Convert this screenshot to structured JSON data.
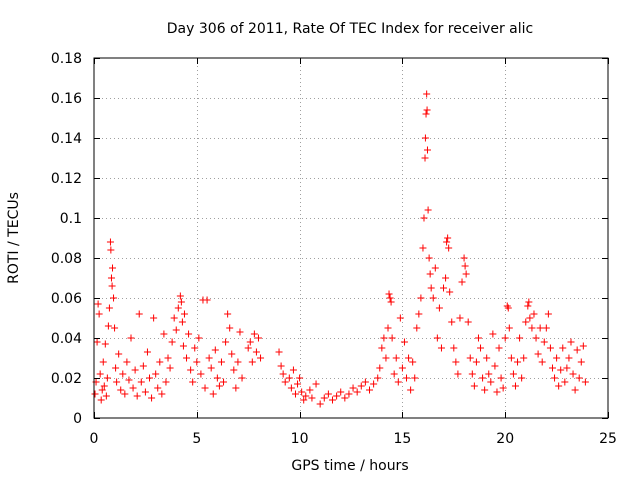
{
  "chart_data": {
    "type": "scatter",
    "title": "Day 306 of 2011, Rate Of TEC Index for receiver alic",
    "xlabel": "GPS time / hours",
    "ylabel": "ROTI / TECUs",
    "xlim": [
      0,
      25
    ],
    "ylim": [
      0,
      0.18
    ],
    "xticks": [
      0,
      5,
      10,
      15,
      20,
      25
    ],
    "xtick_labels": [
      "0",
      "5",
      "10",
      "15",
      "20",
      "25"
    ],
    "yticks": [
      0,
      0.02,
      0.04,
      0.06,
      0.08,
      0.1,
      0.12,
      0.14,
      0.16,
      0.18
    ],
    "ytick_labels": [
      "0",
      "0.02",
      "0.04",
      "0.06",
      "0.08",
      "0.1",
      "0.12",
      "0.14",
      "0.16",
      "0.18"
    ],
    "grid": true,
    "marker": "+",
    "color": "#ff0000",
    "series": [
      {
        "name": "ROTI",
        "points": [
          [
            0.05,
            0.012
          ],
          [
            0.1,
            0.018
          ],
          [
            0.15,
            0.038
          ],
          [
            0.2,
            0.057
          ],
          [
            0.25,
            0.052
          ],
          [
            0.3,
            0.022
          ],
          [
            0.35,
            0.009
          ],
          [
            0.4,
            0.014
          ],
          [
            0.45,
            0.028
          ],
          [
            0.5,
            0.016
          ],
          [
            0.55,
            0.037
          ],
          [
            0.6,
            0.011
          ],
          [
            0.65,
            0.02
          ],
          [
            0.7,
            0.046
          ],
          [
            0.75,
            0.055
          ],
          [
            0.8,
            0.088
          ],
          [
            0.82,
            0.084
          ],
          [
            0.85,
            0.07
          ],
          [
            0.88,
            0.066
          ],
          [
            0.9,
            0.075
          ],
          [
            0.95,
            0.06
          ],
          [
            1.0,
            0.045
          ],
          [
            1.05,
            0.025
          ],
          [
            1.1,
            0.018
          ],
          [
            1.2,
            0.032
          ],
          [
            1.3,
            0.014
          ],
          [
            1.4,
            0.022
          ],
          [
            1.5,
            0.012
          ],
          [
            1.6,
            0.028
          ],
          [
            1.7,
            0.019
          ],
          [
            1.8,
            0.04
          ],
          [
            1.9,
            0.015
          ],
          [
            2.0,
            0.024
          ],
          [
            2.1,
            0.011
          ],
          [
            2.2,
            0.052
          ],
          [
            2.3,
            0.018
          ],
          [
            2.4,
            0.026
          ],
          [
            2.5,
            0.013
          ],
          [
            2.6,
            0.033
          ],
          [
            2.7,
            0.02
          ],
          [
            2.8,
            0.01
          ],
          [
            2.9,
            0.05
          ],
          [
            3.0,
            0.022
          ],
          [
            3.1,
            0.015
          ],
          [
            3.2,
            0.028
          ],
          [
            3.3,
            0.012
          ],
          [
            3.4,
            0.042
          ],
          [
            3.5,
            0.018
          ],
          [
            3.6,
            0.03
          ],
          [
            3.7,
            0.025
          ],
          [
            3.8,
            0.038
          ],
          [
            3.9,
            0.05
          ],
          [
            4.0,
            0.044
          ],
          [
            4.1,
            0.055
          ],
          [
            4.2,
            0.061
          ],
          [
            4.25,
            0.058
          ],
          [
            4.3,
            0.048
          ],
          [
            4.35,
            0.036
          ],
          [
            4.4,
            0.052
          ],
          [
            4.5,
            0.03
          ],
          [
            4.6,
            0.042
          ],
          [
            4.7,
            0.024
          ],
          [
            4.8,
            0.018
          ],
          [
            4.9,
            0.035
          ],
          [
            5.0,
            0.028
          ],
          [
            5.1,
            0.04
          ],
          [
            5.2,
            0.022
          ],
          [
            5.3,
            0.059
          ],
          [
            5.4,
            0.015
          ],
          [
            5.5,
            0.059
          ],
          [
            5.6,
            0.03
          ],
          [
            5.7,
            0.025
          ],
          [
            5.8,
            0.012
          ],
          [
            5.9,
            0.034
          ],
          [
            6.0,
            0.02
          ],
          [
            6.1,
            0.016
          ],
          [
            6.2,
            0.028
          ],
          [
            6.3,
            0.018
          ],
          [
            6.4,
            0.038
          ],
          [
            6.5,
            0.052
          ],
          [
            6.6,
            0.045
          ],
          [
            6.7,
            0.032
          ],
          [
            6.8,
            0.024
          ],
          [
            6.9,
            0.015
          ],
          [
            7.0,
            0.028
          ],
          [
            7.1,
            0.043
          ],
          [
            7.2,
            0.02
          ],
          [
            7.5,
            0.035
          ],
          [
            7.6,
            0.038
          ],
          [
            7.7,
            0.028
          ],
          [
            7.8,
            0.042
          ],
          [
            7.9,
            0.033
          ],
          [
            8.0,
            0.04
          ],
          [
            8.1,
            0.03
          ],
          [
            9.0,
            0.033
          ],
          [
            9.1,
            0.026
          ],
          [
            9.2,
            0.022
          ],
          [
            9.3,
            0.018
          ],
          [
            9.5,
            0.02
          ],
          [
            9.6,
            0.015
          ],
          [
            9.7,
            0.024
          ],
          [
            9.8,
            0.012
          ],
          [
            9.9,
            0.017
          ],
          [
            10.0,
            0.02
          ],
          [
            10.1,
            0.013
          ],
          [
            10.2,
            0.009
          ],
          [
            10.3,
            0.011
          ],
          [
            10.5,
            0.014
          ],
          [
            10.6,
            0.01
          ],
          [
            10.8,
            0.017
          ],
          [
            11.0,
            0.007
          ],
          [
            11.2,
            0.01
          ],
          [
            11.4,
            0.012
          ],
          [
            11.6,
            0.009
          ],
          [
            11.8,
            0.011
          ],
          [
            12.0,
            0.013
          ],
          [
            12.2,
            0.01
          ],
          [
            12.4,
            0.012
          ],
          [
            12.6,
            0.015
          ],
          [
            12.8,
            0.013
          ],
          [
            13.0,
            0.016
          ],
          [
            13.2,
            0.018
          ],
          [
            13.4,
            0.014
          ],
          [
            13.6,
            0.017
          ],
          [
            13.8,
            0.02
          ],
          [
            13.9,
            0.025
          ],
          [
            14.0,
            0.035
          ],
          [
            14.1,
            0.04
          ],
          [
            14.2,
            0.03
          ],
          [
            14.3,
            0.045
          ],
          [
            14.35,
            0.062
          ],
          [
            14.4,
            0.06
          ],
          [
            14.45,
            0.058
          ],
          [
            14.5,
            0.04
          ],
          [
            14.6,
            0.022
          ],
          [
            14.7,
            0.03
          ],
          [
            14.8,
            0.018
          ],
          [
            14.9,
            0.05
          ],
          [
            15.0,
            0.025
          ],
          [
            15.1,
            0.038
          ],
          [
            15.2,
            0.02
          ],
          [
            15.3,
            0.03
          ],
          [
            15.4,
            0.014
          ],
          [
            15.5,
            0.028
          ],
          [
            15.6,
            0.02
          ],
          [
            15.7,
            0.045
          ],
          [
            15.8,
            0.052
          ],
          [
            15.9,
            0.06
          ],
          [
            16.0,
            0.085
          ],
          [
            16.05,
            0.1
          ],
          [
            16.1,
            0.13
          ],
          [
            16.12,
            0.14
          ],
          [
            16.15,
            0.152
          ],
          [
            16.18,
            0.162
          ],
          [
            16.2,
            0.154
          ],
          [
            16.22,
            0.134
          ],
          [
            16.25,
            0.104
          ],
          [
            16.3,
            0.08
          ],
          [
            16.35,
            0.072
          ],
          [
            16.4,
            0.065
          ],
          [
            16.5,
            0.06
          ],
          [
            16.6,
            0.075
          ],
          [
            16.7,
            0.04
          ],
          [
            16.8,
            0.055
          ],
          [
            16.9,
            0.035
          ],
          [
            17.0,
            0.065
          ],
          [
            17.1,
            0.07
          ],
          [
            17.15,
            0.088
          ],
          [
            17.2,
            0.09
          ],
          [
            17.25,
            0.085
          ],
          [
            17.3,
            0.063
          ],
          [
            17.4,
            0.048
          ],
          [
            17.5,
            0.035
          ],
          [
            17.6,
            0.028
          ],
          [
            17.7,
            0.022
          ],
          [
            17.8,
            0.05
          ],
          [
            17.9,
            0.068
          ],
          [
            18.0,
            0.08
          ],
          [
            18.05,
            0.076
          ],
          [
            18.1,
            0.072
          ],
          [
            18.2,
            0.048
          ],
          [
            18.3,
            0.03
          ],
          [
            18.4,
            0.022
          ],
          [
            18.5,
            0.016
          ],
          [
            18.6,
            0.028
          ],
          [
            18.7,
            0.04
          ],
          [
            18.8,
            0.035
          ],
          [
            18.9,
            0.02
          ],
          [
            19.0,
            0.014
          ],
          [
            19.1,
            0.03
          ],
          [
            19.2,
            0.022
          ],
          [
            19.3,
            0.018
          ],
          [
            19.4,
            0.042
          ],
          [
            19.5,
            0.026
          ],
          [
            19.6,
            0.013
          ],
          [
            19.7,
            0.035
          ],
          [
            19.8,
            0.02
          ],
          [
            19.9,
            0.015
          ],
          [
            20.0,
            0.04
          ],
          [
            20.1,
            0.056
          ],
          [
            20.15,
            0.055
          ],
          [
            20.2,
            0.045
          ],
          [
            20.3,
            0.03
          ],
          [
            20.4,
            0.022
          ],
          [
            20.5,
            0.016
          ],
          [
            20.6,
            0.028
          ],
          [
            20.7,
            0.04
          ],
          [
            20.8,
            0.02
          ],
          [
            20.9,
            0.03
          ],
          [
            21.0,
            0.048
          ],
          [
            21.1,
            0.056
          ],
          [
            21.15,
            0.058
          ],
          [
            21.2,
            0.05
          ],
          [
            21.3,
            0.045
          ],
          [
            21.4,
            0.052
          ],
          [
            21.5,
            0.04
          ],
          [
            21.6,
            0.032
          ],
          [
            21.7,
            0.045
          ],
          [
            21.8,
            0.028
          ],
          [
            21.9,
            0.038
          ],
          [
            22.0,
            0.045
          ],
          [
            22.1,
            0.052
          ],
          [
            22.2,
            0.035
          ],
          [
            22.3,
            0.025
          ],
          [
            22.4,
            0.02
          ],
          [
            22.5,
            0.03
          ],
          [
            22.6,
            0.016
          ],
          [
            22.7,
            0.024
          ],
          [
            22.8,
            0.035
          ],
          [
            22.9,
            0.018
          ],
          [
            23.0,
            0.025
          ],
          [
            23.1,
            0.03
          ],
          [
            23.2,
            0.038
          ],
          [
            23.3,
            0.022
          ],
          [
            23.4,
            0.014
          ],
          [
            23.5,
            0.034
          ],
          [
            23.6,
            0.02
          ],
          [
            23.7,
            0.028
          ],
          [
            23.8,
            0.036
          ],
          [
            23.9,
            0.018
          ]
        ]
      }
    ]
  }
}
